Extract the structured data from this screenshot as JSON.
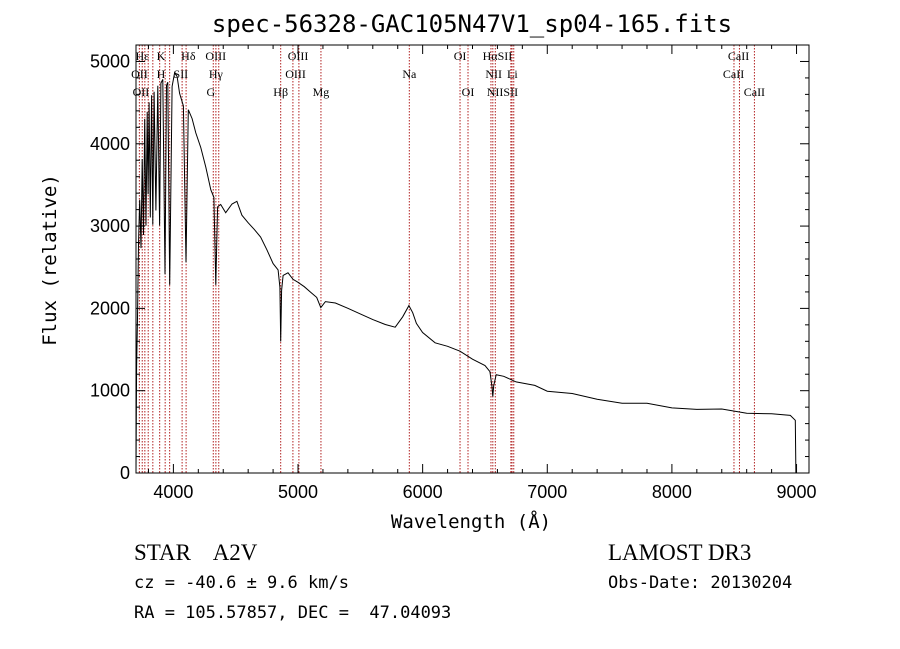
{
  "chart_data": {
    "type": "line",
    "title": "spec-56328-GAC105N47V1_sp04-165.fits",
    "xlabel": "Wavelength (Å)",
    "ylabel": "Flux (relative)",
    "xlim": [
      3700,
      9100
    ],
    "ylim": [
      0,
      5200
    ],
    "xticks": [
      4000,
      5000,
      6000,
      7000,
      8000,
      9000
    ],
    "xtick_labels": [
      "4000",
      "5000",
      "6000",
      "7000",
      "8000",
      "9000"
    ],
    "yticks": [
      0,
      1000,
      2000,
      3000,
      4000,
      5000
    ],
    "ytick_labels": [
      "0",
      "1000",
      "2000",
      "3000",
      "4000",
      "5000"
    ],
    "series": [
      {
        "name": "flux",
        "points": [
          [
            3700,
            0
          ],
          [
            3705,
            1300
          ],
          [
            3712,
            1900
          ],
          [
            3720,
            2800
          ],
          [
            3730,
            3300
          ],
          [
            3740,
            2750
          ],
          [
            3750,
            3800
          ],
          [
            3760,
            2900
          ],
          [
            3770,
            4300
          ],
          [
            3780,
            3000
          ],
          [
            3790,
            4400
          ],
          [
            3797,
            3400
          ],
          [
            3805,
            4500
          ],
          [
            3815,
            3100
          ],
          [
            3825,
            4600
          ],
          [
            3835,
            3000
          ],
          [
            3845,
            4650
          ],
          [
            3860,
            3200
          ],
          [
            3875,
            4700
          ],
          [
            3889,
            3000
          ],
          [
            3900,
            4750
          ],
          [
            3915,
            4800
          ],
          [
            3933,
            2400
          ],
          [
            3945,
            4700
          ],
          [
            3955,
            4750
          ],
          [
            3970,
            2300
          ],
          [
            3990,
            4700
          ],
          [
            4010,
            4850
          ],
          [
            4030,
            4800
          ],
          [
            4050,
            4600
          ],
          [
            4080,
            4450
          ],
          [
            4101,
            2550
          ],
          [
            4120,
            4400
          ],
          [
            4150,
            4300
          ],
          [
            4180,
            4150
          ],
          [
            4220,
            3950
          ],
          [
            4260,
            3700
          ],
          [
            4300,
            3450
          ],
          [
            4325,
            3350
          ],
          [
            4340,
            2300
          ],
          [
            4355,
            3250
          ],
          [
            4380,
            3250
          ],
          [
            4420,
            3150
          ],
          [
            4470,
            3250
          ],
          [
            4510,
            3300
          ],
          [
            4550,
            3150
          ],
          [
            4600,
            3050
          ],
          [
            4650,
            2950
          ],
          [
            4700,
            2850
          ],
          [
            4750,
            2700
          ],
          [
            4800,
            2550
          ],
          [
            4840,
            2450
          ],
          [
            4855,
            2250
          ],
          [
            4861,
            1580
          ],
          [
            4868,
            2200
          ],
          [
            4880,
            2400
          ],
          [
            4920,
            2450
          ],
          [
            4960,
            2350
          ],
          [
            5000,
            2300
          ],
          [
            5050,
            2250
          ],
          [
            5100,
            2200
          ],
          [
            5150,
            2150
          ],
          [
            5183,
            2000
          ],
          [
            5220,
            2100
          ],
          [
            5300,
            2050
          ],
          [
            5400,
            2000
          ],
          [
            5500,
            1950
          ],
          [
            5600,
            1850
          ],
          [
            5700,
            1800
          ],
          [
            5780,
            1780
          ],
          [
            5840,
            1900
          ],
          [
            5890,
            2050
          ],
          [
            5920,
            1950
          ],
          [
            5950,
            1800
          ],
          [
            6000,
            1700
          ],
          [
            6100,
            1600
          ],
          [
            6200,
            1530
          ],
          [
            6300,
            1470
          ],
          [
            6400,
            1400
          ],
          [
            6500,
            1300
          ],
          [
            6540,
            1250
          ],
          [
            6556,
            1050
          ],
          [
            6563,
            920
          ],
          [
            6570,
            1050
          ],
          [
            6590,
            1200
          ],
          [
            6650,
            1180
          ],
          [
            6750,
            1120
          ],
          [
            6900,
            1050
          ],
          [
            7000,
            1010
          ],
          [
            7200,
            950
          ],
          [
            7400,
            900
          ],
          [
            7600,
            860
          ],
          [
            7800,
            830
          ],
          [
            8000,
            800
          ],
          [
            8200,
            780
          ],
          [
            8400,
            760
          ],
          [
            8600,
            740
          ],
          [
            8800,
            720
          ],
          [
            8950,
            700
          ],
          [
            8990,
            640
          ],
          [
            8995,
            0
          ]
        ]
      }
    ],
    "lines": [
      {
        "name": "OII",
        "wave": 3727
      },
      {
        "name": "Hε",
        "wave": 3750
      },
      {
        "name": "Hζ",
        "wave": 3771
      },
      {
        "name": "Hη",
        "wave": 3798
      },
      {
        "name": "Hθ",
        "wave": 3835
      },
      {
        "name": "K",
        "wave": 3890
      },
      {
        "name": "H",
        "wave": 3934
      },
      {
        "name": "Hε",
        "wave": 3970
      },
      {
        "name": "SII",
        "wave": 4070
      },
      {
        "name": "Hδ",
        "wave": 4102
      },
      {
        "name": "OIII",
        "wave": 4320
      },
      {
        "name": "Hγ",
        "wave": 4341
      },
      {
        "name": "G",
        "wave": 4364
      },
      {
        "name": "Hβ",
        "wave": 4861
      },
      {
        "name": "OIII",
        "wave": 4959
      },
      {
        "name": "OIII",
        "wave": 5007
      },
      {
        "name": "Mg",
        "wave": 5184
      },
      {
        "name": "Na",
        "wave": 5893
      },
      {
        "name": "OI",
        "wave": 6300
      },
      {
        "name": "OI",
        "wave": 6364
      },
      {
        "name": "NII",
        "wave": 6548
      },
      {
        "name": "Hα",
        "wave": 6563
      },
      {
        "name": "NII",
        "wave": 6583
      },
      {
        "name": "Li",
        "wave": 6708
      },
      {
        "name": "SII",
        "wave": 6717
      },
      {
        "name": "SII",
        "wave": 6731
      },
      {
        "name": "CaII",
        "wave": 8498
      },
      {
        "name": "CaII",
        "wave": 8542
      },
      {
        "name": "CaII",
        "wave": 8662
      }
    ],
    "labels": [
      {
        "text": "Hε",
        "wave": 3751,
        "row": 0
      },
      {
        "text": "K",
        "wave": 3900,
        "row": 0
      },
      {
        "text": "Hδ",
        "wave": 4120,
        "row": 0
      },
      {
        "text": "OIII",
        "wave": 4340,
        "row": 0
      },
      {
        "text": "OIII",
        "wave": 5000,
        "row": 0
      },
      {
        "text": "OI",
        "wave": 6300,
        "row": 0
      },
      {
        "text": "HαSII",
        "wave": 6600,
        "row": 0
      },
      {
        "text": "CaII",
        "wave": 8535,
        "row": 0
      },
      {
        "text": "OII",
        "wave": 3728,
        "row": 1
      },
      {
        "text": "H",
        "wave": 3900,
        "row": 1
      },
      {
        "text": "SII",
        "wave": 4060,
        "row": 1
      },
      {
        "text": "Hγ",
        "wave": 4341,
        "row": 1
      },
      {
        "text": "OIII",
        "wave": 4980,
        "row": 1
      },
      {
        "text": "Na",
        "wave": 5893,
        "row": 1
      },
      {
        "text": "NII",
        "wave": 6570,
        "row": 1
      },
      {
        "text": "Li",
        "wave": 6720,
        "row": 1
      },
      {
        "text": "CaII",
        "wave": 8495,
        "row": 1
      },
      {
        "text": "OII",
        "wave": 3740,
        "row": 2
      },
      {
        "text": "G",
        "wave": 4300,
        "row": 2
      },
      {
        "text": "Hβ",
        "wave": 4861,
        "row": 2
      },
      {
        "text": "Mg",
        "wave": 5184,
        "row": 2
      },
      {
        "text": "OI",
        "wave": 6364,
        "row": 2
      },
      {
        "text": "NIISII",
        "wave": 6640,
        "row": 2
      },
      {
        "text": "CaII",
        "wave": 8662,
        "row": 2
      }
    ]
  },
  "info": {
    "object_class": "STAR",
    "subclass": "A2V",
    "survey": "LAMOST DR3",
    "cz": "cz = -40.6 ± 9.6 km/s",
    "obs_date": "Obs-Date: 20130204",
    "radec": "RA = 105.57857, DEC =  47.04093"
  },
  "colors": {
    "spectrum": "#000000",
    "line_markers": "#b22222",
    "axes": "#000000"
  }
}
